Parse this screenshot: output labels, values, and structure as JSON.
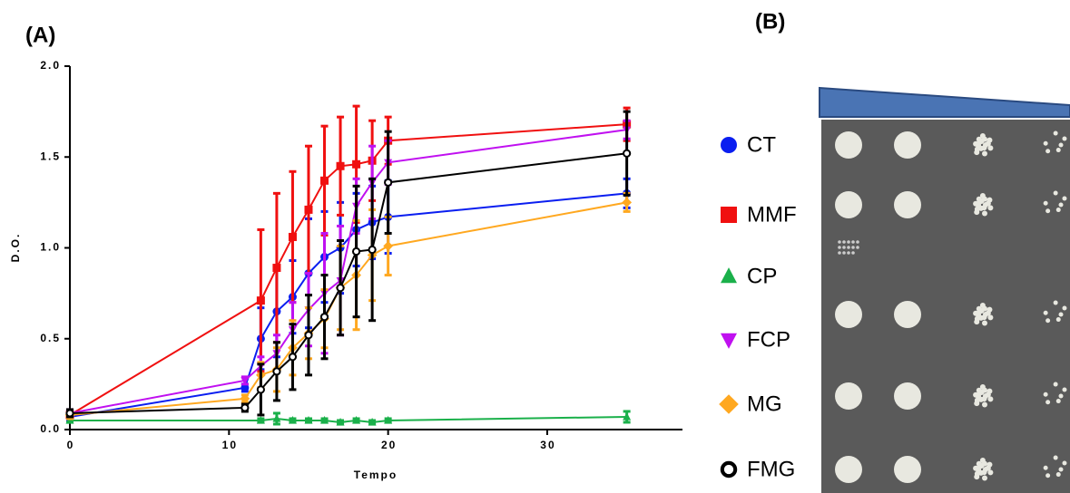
{
  "chart_data": {
    "type": "line",
    "annotations": [
      "(A)",
      "(B)"
    ],
    "x_label": "Tempo",
    "y_label": "D.O.",
    "xlim": [
      0,
      38.5
    ],
    "ylim": [
      0,
      2
    ],
    "xticks": [
      0,
      10,
      20,
      30
    ],
    "yticks": [
      {
        "value": 0,
        "label": "0.0"
      },
      0.5,
      {
        "value": 1,
        "label": "1.0"
      },
      1.5,
      {
        "value": 2,
        "label": "2.0"
      }
    ],
    "series": [
      {
        "name": "CT",
        "color": "#0a1ef0",
        "marker": "circle",
        "x": [
          0,
          11,
          12,
          13,
          14,
          15,
          16,
          17,
          18,
          19,
          20,
          35
        ],
        "values": [
          0.07,
          0.23,
          0.5,
          0.65,
          0.73,
          0.86,
          0.95,
          1.0,
          1.1,
          1.14,
          1.17,
          1.3
        ],
        "errors": [
          0.02,
          0.02,
          0.17,
          0.25,
          0.2,
          0.3,
          0.25,
          0.25,
          0.2,
          0.2,
          0.2,
          0.08
        ]
      },
      {
        "name": "MMF",
        "color": "#f01010",
        "marker": "square",
        "x": [
          0,
          12,
          13,
          14,
          15,
          16,
          17,
          18,
          19,
          20,
          35
        ],
        "values": [
          0.08,
          0.71,
          0.89,
          1.06,
          1.21,
          1.37,
          1.45,
          1.46,
          1.48,
          1.59,
          1.68
        ],
        "errors": [
          0.02,
          0.39,
          0.41,
          0.36,
          0.35,
          0.3,
          0.27,
          0.32,
          0.22,
          0.13,
          0.09
        ]
      },
      {
        "name": "CP",
        "color": "#1ab04a",
        "marker": "triangle",
        "x": [
          0,
          12,
          13,
          14,
          15,
          16,
          17,
          18,
          19,
          20,
          35
        ],
        "values": [
          0.05,
          0.05,
          0.06,
          0.05,
          0.05,
          0.05,
          0.04,
          0.05,
          0.04,
          0.05,
          0.07
        ],
        "errors": [
          0.01,
          0.01,
          0.03,
          0.01,
          0.01,
          0.01,
          0.01,
          0.01,
          0.01,
          0.01,
          0.03
        ]
      },
      {
        "name": "FCP",
        "color": "#c010f0",
        "marker": "triangle-down",
        "x": [
          0,
          11,
          12,
          13,
          14,
          15,
          16,
          17,
          18,
          19,
          20,
          35
        ],
        "values": [
          0.09,
          0.27,
          0.35,
          0.42,
          0.55,
          0.66,
          0.75,
          0.82,
          1.23,
          1.36,
          1.47,
          1.65
        ],
        "errors": [
          0.02,
          0.02,
          0.05,
          0.1,
          0.15,
          0.2,
          0.33,
          0.3,
          0.15,
          0.2,
          0.12,
          0.05
        ]
      },
      {
        "name": "MG",
        "color": "#ffa820",
        "marker": "diamond",
        "x": [
          0,
          11,
          12,
          13,
          14,
          15,
          16,
          17,
          18,
          19,
          20,
          35
        ],
        "values": [
          0.08,
          0.17,
          0.3,
          0.33,
          0.45,
          0.53,
          0.61,
          0.78,
          0.85,
          0.96,
          1.01,
          1.25
        ],
        "errors": [
          0.02,
          0.02,
          0.07,
          0.12,
          0.15,
          0.14,
          0.16,
          0.23,
          0.3,
          0.25,
          0.16,
          0.05
        ]
      },
      {
        "name": "FMG",
        "color": "#000000",
        "marker": "open-circle",
        "x": [
          0,
          11,
          12,
          13,
          14,
          15,
          16,
          17,
          18,
          19,
          20,
          35
        ],
        "values": [
          0.09,
          0.12,
          0.22,
          0.32,
          0.4,
          0.52,
          0.62,
          0.78,
          0.98,
          0.99,
          1.36,
          1.52
        ],
        "errors": [
          0.02,
          0.02,
          0.14,
          0.16,
          0.18,
          0.22,
          0.23,
          0.26,
          0.36,
          0.39,
          0.28,
          0.23
        ]
      }
    ]
  }
}
